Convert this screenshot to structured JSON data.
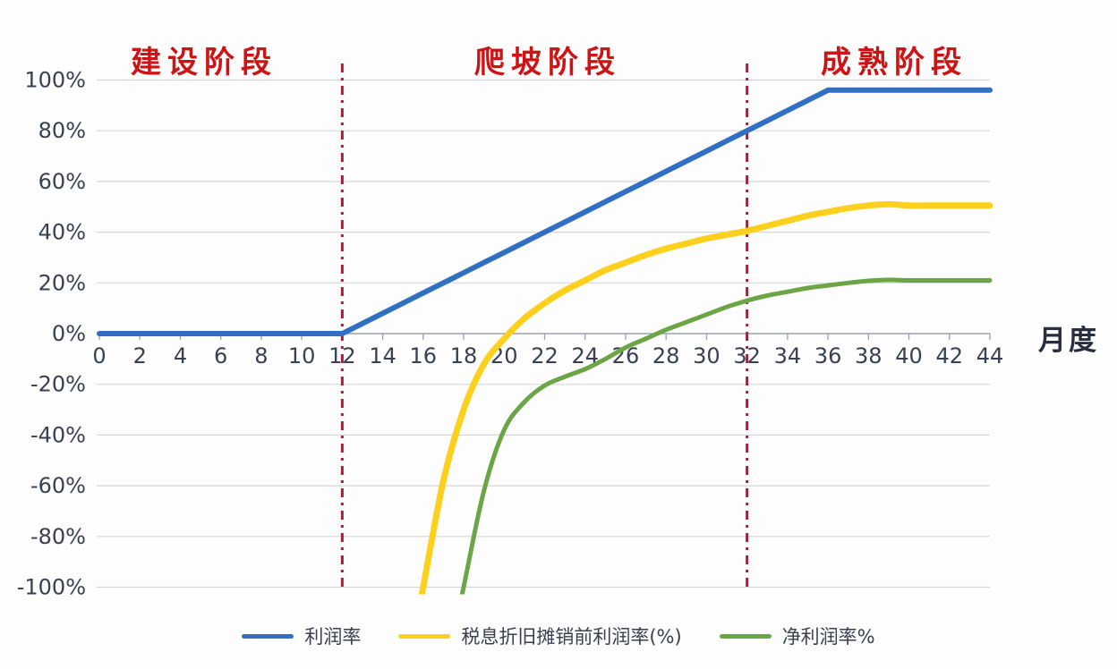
{
  "chart_data": {
    "type": "line",
    "title": "",
    "xlabel": "月度",
    "ylabel": "",
    "x_range": [
      0,
      44
    ],
    "y_range": [
      -100,
      100
    ],
    "grid": true,
    "legend_position": "bottom",
    "x_ticks": [
      0,
      2,
      4,
      6,
      8,
      10,
      12,
      14,
      16,
      18,
      20,
      22,
      24,
      26,
      28,
      30,
      32,
      34,
      36,
      38,
      40,
      42,
      44
    ],
    "y_tick_values": [
      100,
      80,
      60,
      40,
      20,
      0,
      -20,
      -40,
      -60,
      -80,
      -100
    ],
    "y_tick_labels": [
      "100%",
      "80%",
      "60%",
      "40%",
      "20%",
      "0%",
      "-20%",
      "-40%",
      "-60%",
      "-80%",
      "-100%"
    ],
    "phases": [
      {
        "label": "建设阶段",
        "from": 0,
        "to": 12
      },
      {
        "label": "爬坡阶段",
        "from": 12,
        "to": 32
      },
      {
        "label": "成熟阶段",
        "from": 32,
        "to": 44
      }
    ],
    "phase_boundaries": [
      12,
      32
    ],
    "phase_boundary_color": "#c11236",
    "series": [
      {
        "name": "利润率",
        "color": "#3070c2",
        "width": 6,
        "smooth": false,
        "extends_below": false,
        "points": [
          [
            0,
            0
          ],
          [
            1,
            0
          ],
          [
            2,
            0
          ],
          [
            3,
            0
          ],
          [
            4,
            0
          ],
          [
            5,
            0
          ],
          [
            6,
            0
          ],
          [
            7,
            0
          ],
          [
            8,
            0
          ],
          [
            9,
            0
          ],
          [
            10,
            0
          ],
          [
            11,
            0
          ],
          [
            12,
            0
          ],
          [
            13,
            4
          ],
          [
            14,
            8
          ],
          [
            15,
            12
          ],
          [
            16,
            16
          ],
          [
            17,
            20
          ],
          [
            18,
            24
          ],
          [
            19,
            28
          ],
          [
            20,
            32
          ],
          [
            21,
            36
          ],
          [
            22,
            40
          ],
          [
            23,
            44
          ],
          [
            24,
            48
          ],
          [
            25,
            52
          ],
          [
            26,
            56
          ],
          [
            27,
            60
          ],
          [
            28,
            64
          ],
          [
            29,
            68
          ],
          [
            30,
            72
          ],
          [
            31,
            76
          ],
          [
            32,
            80
          ],
          [
            33,
            84
          ],
          [
            34,
            88
          ],
          [
            35,
            92
          ],
          [
            36,
            96
          ],
          [
            37,
            96
          ],
          [
            38,
            96
          ],
          [
            39,
            96
          ],
          [
            40,
            96
          ],
          [
            41,
            96
          ],
          [
            42,
            96
          ],
          [
            43,
            96
          ],
          [
            44,
            96
          ]
        ]
      },
      {
        "name": "税息折旧摊销前利润率(%)",
        "color": "#fdd01d",
        "width": 7,
        "smooth": true,
        "extends_below": true,
        "points": [
          [
            16,
            -100
          ],
          [
            17,
            -58
          ],
          [
            18,
            -30
          ],
          [
            19,
            -12
          ],
          [
            20,
            -2
          ],
          [
            21,
            6
          ],
          [
            22,
            12
          ],
          [
            23,
            17
          ],
          [
            24,
            21
          ],
          [
            25,
            25
          ],
          [
            26,
            28
          ],
          [
            27,
            31
          ],
          [
            28,
            33.5
          ],
          [
            29,
            35.5
          ],
          [
            30,
            37.5
          ],
          [
            31,
            39
          ],
          [
            32,
            40.5
          ],
          [
            33,
            42.5
          ],
          [
            34,
            44.5
          ],
          [
            35,
            46.5
          ],
          [
            36,
            48
          ],
          [
            37,
            49.5
          ],
          [
            38,
            50.5
          ],
          [
            39,
            51
          ],
          [
            40,
            50.5
          ],
          [
            41,
            50.5
          ],
          [
            42,
            50.5
          ],
          [
            43,
            50.5
          ],
          [
            44,
            50.5
          ]
        ]
      },
      {
        "name": "净利润率%",
        "color": "#6ca546",
        "width": 5,
        "smooth": true,
        "extends_below": true,
        "points": [
          [
            18,
            -100
          ],
          [
            19,
            -62
          ],
          [
            20,
            -38
          ],
          [
            21,
            -27
          ],
          [
            22,
            -20.5
          ],
          [
            23,
            -17
          ],
          [
            24,
            -14
          ],
          [
            25,
            -10
          ],
          [
            26,
            -5.5
          ],
          [
            27,
            -2
          ],
          [
            28,
            1.5
          ],
          [
            29,
            4.5
          ],
          [
            30,
            7.5
          ],
          [
            31,
            10.5
          ],
          [
            32,
            13
          ],
          [
            33,
            15
          ],
          [
            34,
            16.5
          ],
          [
            35,
            18
          ],
          [
            36,
            19
          ],
          [
            37,
            20
          ],
          [
            38,
            20.8
          ],
          [
            39,
            21.2
          ],
          [
            40,
            21
          ],
          [
            41,
            21
          ],
          [
            42,
            21
          ],
          [
            43,
            21
          ],
          [
            44,
            21
          ]
        ]
      }
    ]
  },
  "colors": {
    "grid": "#d7d7d9",
    "axis": "#9ba1ab",
    "tick_text": "#3a4051",
    "phase_text": "#ce1315",
    "background": "#fdfdfd"
  }
}
